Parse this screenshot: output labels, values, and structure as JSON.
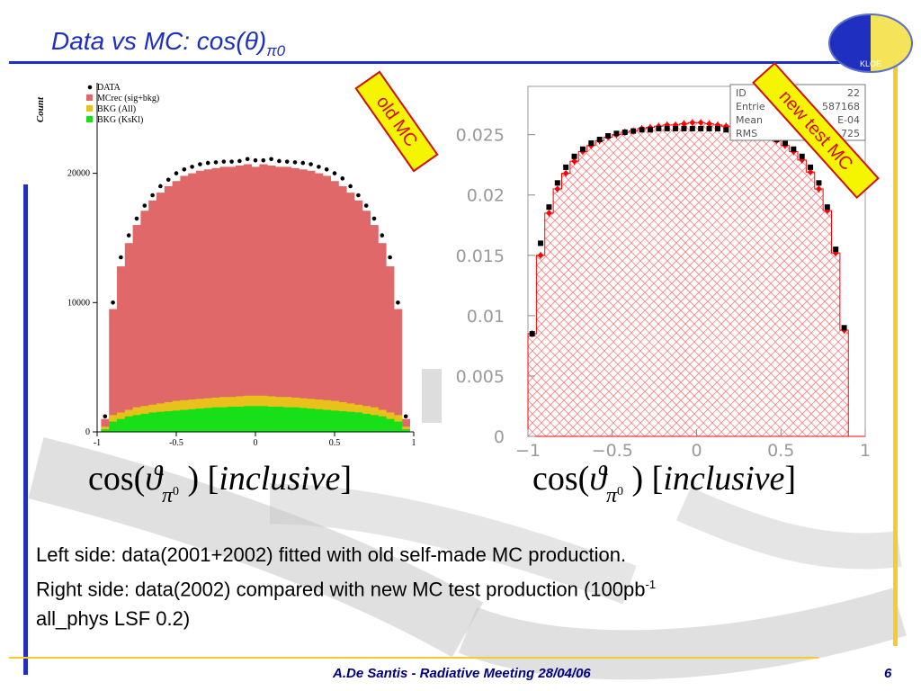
{
  "slide": {
    "title_text": "Data vs MC: cos(",
    "title_theta": "θ",
    "title_close": ")",
    "title_sub": "π0",
    "footer": "A.De Santis - Radiative Meeting 28/04/06",
    "page_number": "6",
    "logo_text": "KLOE",
    "stamp_old": "old MC",
    "stamp_new": "new test MC",
    "formula_left": {
      "cos": "cos(",
      "theta": "ϑ",
      "pi": "π",
      "zero": "0",
      "rest": ")",
      "bracket_text": "inclusive"
    },
    "formula_right": {
      "cos": "cos(",
      "theta": "ϑ",
      "pi": "π",
      "zero": "0",
      "rest": ")",
      "bracket_text": "inclusive"
    },
    "caption_line1": "Left side: data(2001+2002) fitted with old self-made MC production.",
    "caption_line2": "Right side: data(2002) compared with new MC test production (100pb",
    "caption_line2_sup": "-1",
    "caption_line3": "all_phys LSF 0.2)",
    "colors": {
      "title_blue": "#1f2fbf",
      "accent_yellow": "#f5cc2c",
      "stamp_red": "#d01010",
      "stamp_fill": "#f5f500"
    }
  },
  "chart_data": [
    {
      "type": "bar",
      "ylabel": "Count",
      "x_range": [
        -1,
        1
      ],
      "ylim": [
        0,
        27000
      ],
      "x_ticks": [
        "-1",
        "-0.5",
        "0",
        "0.5",
        "1"
      ],
      "y_ticks": [
        "0",
        "10000",
        "20000"
      ],
      "legend_position": "top-left",
      "bins": [
        -0.95,
        -0.9,
        -0.85,
        -0.8,
        -0.75,
        -0.7,
        -0.65,
        -0.6,
        -0.55,
        -0.5,
        -0.45,
        -0.4,
        -0.35,
        -0.3,
        -0.25,
        -0.2,
        -0.15,
        -0.1,
        -0.05,
        0,
        0.05,
        0.1,
        0.15,
        0.2,
        0.25,
        0.3,
        0.35,
        0.4,
        0.45,
        0.5,
        0.55,
        0.6,
        0.65,
        0.7,
        0.75,
        0.8,
        0.85,
        0.9,
        0.95
      ],
      "series": [
        {
          "name": "DATA",
          "color": "#000000",
          "values": [
            1200,
            10000,
            13500,
            15200,
            16500,
            17500,
            18300,
            19000,
            19500,
            20000,
            20300,
            20500,
            20700,
            20800,
            20850,
            20900,
            20900,
            20950,
            21100,
            21000,
            21000,
            21100,
            20950,
            20900,
            20850,
            20800,
            20700,
            20500,
            20300,
            20000,
            19600,
            19000,
            18300,
            17500,
            16500,
            15200,
            13500,
            10000,
            1200
          ]
        },
        {
          "name": "MCrec (sig+bkg)",
          "color": "#e06868",
          "values": [
            1000,
            9500,
            12800,
            14600,
            16000,
            17100,
            17900,
            18500,
            19000,
            19400,
            19800,
            20000,
            20200,
            20300,
            20400,
            20500,
            20500,
            20600,
            20700,
            20500,
            20700,
            20600,
            20500,
            20500,
            20400,
            20300,
            20200,
            20000,
            19800,
            19400,
            19000,
            18500,
            17900,
            17100,
            16000,
            14600,
            12800,
            9500,
            1000
          ]
        },
        {
          "name": "BKG (All)",
          "color": "#e8c21a",
          "values": [
            400,
            1300,
            1500,
            1700,
            1900,
            2000,
            2100,
            2200,
            2300,
            2400,
            2450,
            2500,
            2550,
            2600,
            2650,
            2700,
            2700,
            2750,
            2800,
            2800,
            2800,
            2750,
            2700,
            2700,
            2650,
            2600,
            2550,
            2500,
            2450,
            2400,
            2300,
            2200,
            2100,
            2000,
            1900,
            1700,
            1500,
            1300,
            400
          ]
        },
        {
          "name": "BKG (KsKl)",
          "color": "#18e018",
          "values": [
            200,
            800,
            1000,
            1200,
            1300,
            1400,
            1500,
            1550,
            1600,
            1650,
            1700,
            1750,
            1800,
            1850,
            1900,
            1900,
            1950,
            1950,
            2000,
            2000,
            2000,
            1950,
            1950,
            1900,
            1900,
            1850,
            1800,
            1750,
            1700,
            1650,
            1600,
            1550,
            1500,
            1400,
            1300,
            1200,
            1000,
            800,
            200
          ]
        }
      ]
    },
    {
      "type": "bar",
      "x_range": [
        -1,
        1
      ],
      "ylim": [
        0,
        0.029
      ],
      "x_ticks": [
        "−1",
        "−0.5",
        "0",
        "0.5",
        "1"
      ],
      "y_ticks": [
        "0",
        "0.005",
        "0.01",
        "0.015",
        "0.02",
        "0.025"
      ],
      "stats_box": {
        "labels": [
          "ID",
          "Entrie",
          "Mean",
          "RMS"
        ],
        "values": [
          "22",
          "587168",
          "E-04",
          "725"
        ]
      },
      "bins": [
        -0.975,
        -0.925,
        -0.875,
        -0.825,
        -0.775,
        -0.725,
        -0.675,
        -0.625,
        -0.575,
        -0.525,
        -0.475,
        -0.425,
        -0.375,
        -0.325,
        -0.275,
        -0.225,
        -0.175,
        -0.125,
        -0.075,
        -0.025,
        0.025,
        0.075,
        0.125,
        0.175,
        0.225,
        0.275,
        0.325,
        0.375,
        0.425,
        0.475,
        0.525,
        0.575,
        0.625,
        0.675,
        0.725,
        0.775,
        0.825,
        0.875,
        0.925,
        0.975
      ],
      "series": [
        {
          "name": "new test MC",
          "color": "#ff0000",
          "values": [
            0.0085,
            0.015,
            0.0185,
            0.0205,
            0.0218,
            0.0228,
            0.0236,
            0.0241,
            0.0245,
            0.0248,
            0.025,
            0.0252,
            0.0253,
            0.0255,
            0.0256,
            0.0257,
            0.0258,
            0.0258,
            0.0259,
            0.026,
            0.026,
            0.0259,
            0.0258,
            0.0257,
            0.0255,
            0.0254,
            0.0252,
            0.025,
            0.0248,
            0.0245,
            0.0241,
            0.0236,
            0.0229,
            0.0219,
            0.0205,
            0.0187,
            0.0152,
            0.0088,
            0.0,
            0.0
          ]
        },
        {
          "name": "data",
          "color": "#000000",
          "values": [
            0.0085,
            0.016,
            0.019,
            0.021,
            0.0223,
            0.0232,
            0.0238,
            0.0243,
            0.0246,
            0.0249,
            0.0251,
            0.0252,
            0.0253,
            0.0254,
            0.0254,
            0.0255,
            0.0255,
            0.0255,
            0.0255,
            0.0255,
            0.0255,
            0.0255,
            0.0255,
            0.0254,
            0.0254,
            0.0253,
            0.0252,
            0.025,
            0.0248,
            0.0246,
            0.0243,
            0.0238,
            0.0232,
            0.0223,
            0.021,
            0.019,
            0.0155,
            0.009,
            0.0,
            0.0
          ]
        }
      ]
    }
  ]
}
